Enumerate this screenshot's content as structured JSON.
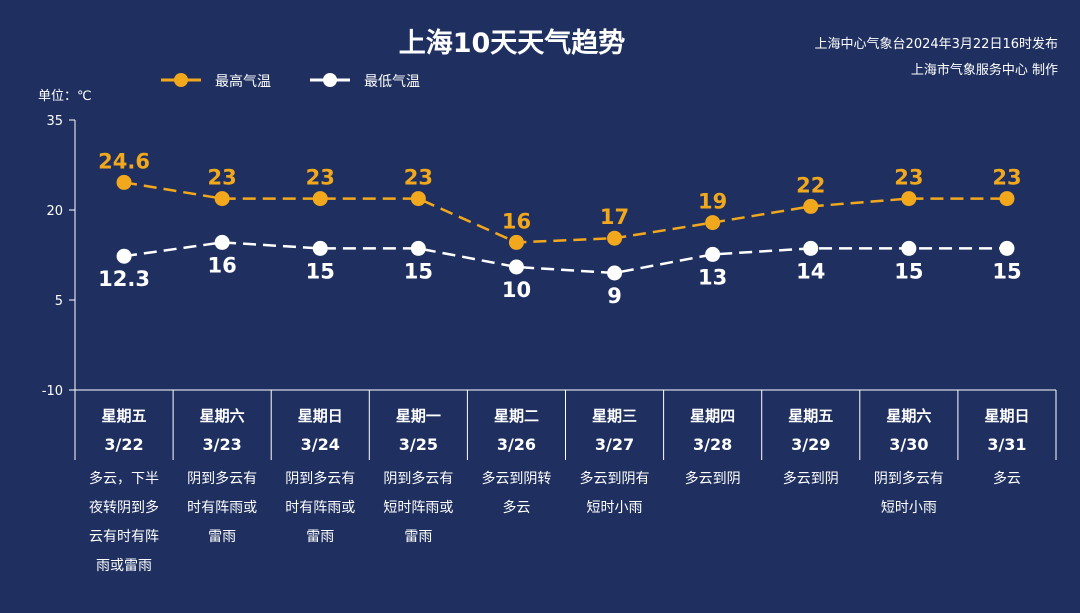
{
  "title": "上海10天天气趋势",
  "issuer": {
    "line1": "上海中心气象台2024年3月22日16时发布",
    "line2": "上海市气象服务中心 制作"
  },
  "colors": {
    "background": "#1f3060",
    "high": "#f2a81d",
    "low": "#ffffff"
  },
  "chart_data": {
    "type": "line",
    "title": "上海10天天气趋势",
    "unit_label": "单位：℃",
    "ylim": [
      -10,
      35
    ],
    "yticks": [
      -10,
      5,
      20,
      35
    ],
    "categories": [
      "3/22",
      "3/23",
      "3/24",
      "3/25",
      "3/26",
      "3/27",
      "3/28",
      "3/29",
      "3/30",
      "3/31"
    ],
    "weekdays": [
      "星期五",
      "星期六",
      "星期日",
      "星期一",
      "星期二",
      "星期三",
      "星期四",
      "星期五",
      "星期六",
      "星期日"
    ],
    "descriptions": [
      [
        "多云，下半",
        "夜转阴到多",
        "云有时有阵",
        "雨或雷雨"
      ],
      [
        "阴到多云有",
        "时有阵雨或",
        "雷雨"
      ],
      [
        "阴到多云有",
        "时有阵雨或",
        "雷雨"
      ],
      [
        "阴到多云有",
        "短时阵雨或",
        "雷雨"
      ],
      [
        "多云到阴转",
        "多云"
      ],
      [
        "多云到阴有",
        "短时小雨"
      ],
      [
        "多云到阴"
      ],
      [
        "多云到阴"
      ],
      [
        "阴到多云有",
        "短时小雨"
      ],
      [
        "多云"
      ]
    ],
    "series": [
      {
        "name": "最高气温",
        "values": [
          24.6,
          23,
          23,
          23,
          16,
          17,
          19,
          22,
          23,
          23
        ],
        "value_labels": [
          "24.6",
          "23",
          "23",
          "23",
          "16",
          "17",
          "19",
          "22",
          "23",
          "23"
        ],
        "plot_values": [
          24.6,
          21.9,
          21.9,
          21.9,
          14.6,
          15.3,
          17.9,
          20.6,
          21.9,
          21.9
        ]
      },
      {
        "name": "最低气温",
        "values": [
          12.3,
          16,
          15,
          15,
          10,
          9,
          13,
          14,
          15,
          15
        ],
        "value_labels": [
          "12.3",
          "16",
          "15",
          "15",
          "10",
          "9",
          "13",
          "14",
          "15",
          "15"
        ],
        "plot_values": [
          12.3,
          14.6,
          13.6,
          13.6,
          10.5,
          9.5,
          12.6,
          13.6,
          13.6,
          13.6
        ]
      }
    ],
    "grid": false,
    "legend": "top-left"
  }
}
